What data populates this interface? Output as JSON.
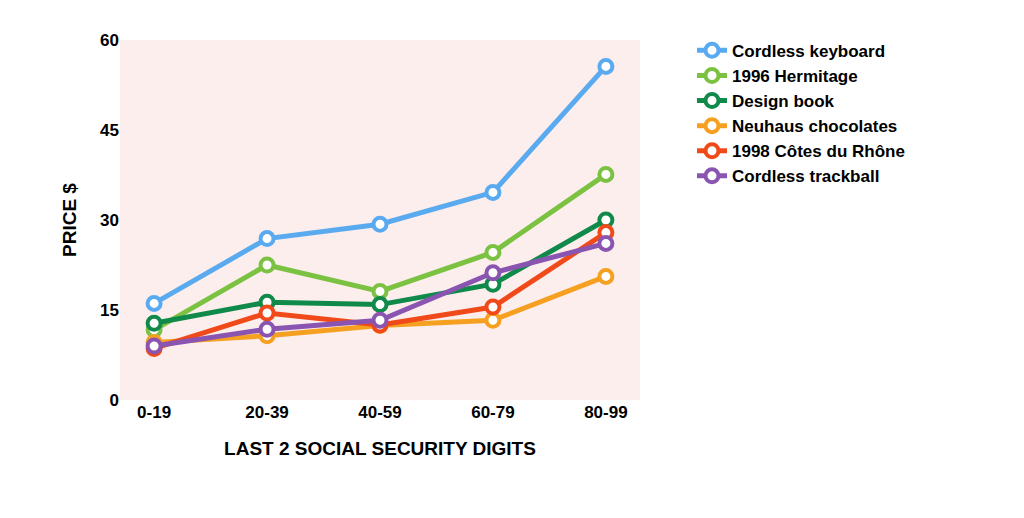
{
  "chart_data": {
    "type": "line",
    "x_label": "LAST 2 SOCIAL SECURITY DIGITS",
    "y_label": "PRICE $",
    "categories": [
      "0-19",
      "20-39",
      "40-59",
      "60-79",
      "80-99"
    ],
    "series": [
      {
        "name": "Cordless keyboard",
        "color": "#5aaaf0",
        "values": [
          16.1,
          26.9,
          29.3,
          34.6,
          55.6
        ]
      },
      {
        "name": "1996 Hermitage",
        "color": "#7cc242",
        "values": [
          11.7,
          22.5,
          18.1,
          24.6,
          37.6
        ]
      },
      {
        "name": "Design book",
        "color": "#0f8a4a",
        "values": [
          12.8,
          16.3,
          15.9,
          19.3,
          30.0
        ]
      },
      {
        "name": "Neuhaus chocolates",
        "color": "#f5a020",
        "values": [
          9.6,
          10.7,
          12.4,
          13.3,
          20.6
        ]
      },
      {
        "name": "1998 Côtes du Rhône",
        "color": "#f04a1a",
        "values": [
          8.6,
          14.5,
          12.5,
          15.5,
          27.9
        ]
      },
      {
        "name": "Cordless trackball",
        "color": "#8a55b0",
        "values": [
          9.0,
          11.8,
          13.3,
          21.2,
          26.1
        ]
      }
    ],
    "ylim": [
      0,
      60
    ],
    "yticks": [
      0,
      15,
      30,
      45,
      60
    ],
    "grid": false,
    "legend": "right",
    "marker": "circle"
  }
}
